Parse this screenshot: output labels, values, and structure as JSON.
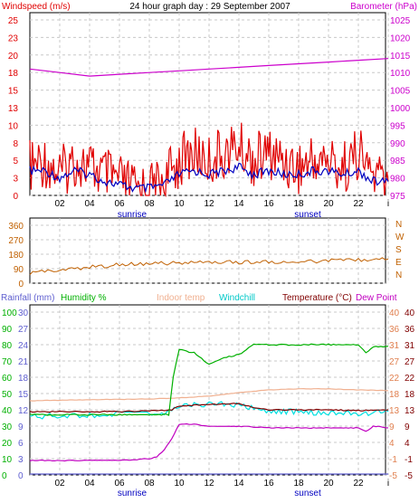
{
  "title": "24 hour graph day : 29 September 2007",
  "labels": {
    "sunrise": "sunrise",
    "sunset": "sunset"
  },
  "colors": {
    "windspeed": "#e00000",
    "windavg": "#0000c0",
    "barometer": "#cc00cc",
    "winddir": "#c06000",
    "rainfall": "#6060d0",
    "humidity": "#00b000",
    "indoor": "#f0b090",
    "windchill": "#00e0e0",
    "temperature": "#800000",
    "dewpoint": "#c000c0",
    "grid": "#c8c8c8",
    "frame": "#000000"
  },
  "chart_data": [
    {
      "type": "line",
      "panel": "wind-barometer",
      "x_ticks": [
        "02",
        "04",
        "06",
        "08",
        "10",
        "12",
        "14",
        "16",
        "18",
        "20",
        "22",
        "i"
      ],
      "left_axis": {
        "label": "Windspeed (m/s)",
        "ticks": [
          0,
          3,
          5,
          8,
          10,
          13,
          15,
          18,
          20,
          23,
          25
        ],
        "ylim": [
          0,
          25
        ]
      },
      "right_axis": {
        "label": "Barometer (hPa)",
        "ticks": [
          975,
          980,
          985,
          990,
          995,
          1000,
          1005,
          1010,
          1015,
          1020,
          1025
        ],
        "ylim": [
          975,
          1025
        ]
      },
      "series": [
        {
          "name": "Windspeed (m/s)",
          "color_key": "windspeed",
          "x": [
            0,
            1,
            2,
            3,
            4,
            5,
            6,
            7,
            8,
            9,
            10,
            11,
            12,
            13,
            14,
            15,
            16,
            17,
            18,
            19,
            20,
            21,
            22,
            23,
            24
          ],
          "values": [
            4,
            5,
            3,
            5,
            4,
            3,
            2,
            1,
            1,
            2,
            5,
            6,
            5,
            6,
            7,
            5,
            6,
            5,
            4,
            5,
            5,
            4,
            6,
            3,
            2
          ]
        },
        {
          "name": "wind average",
          "color_key": "windavg",
          "x": [
            0,
            1,
            2,
            3,
            4,
            5,
            6,
            7,
            8,
            9,
            10,
            11,
            12,
            13,
            14,
            15,
            16,
            17,
            18,
            19,
            20,
            21,
            22,
            23,
            24
          ],
          "values": [
            3.5,
            3.5,
            2.5,
            3.5,
            3,
            2,
            1.5,
            1,
            1,
            1.5,
            3,
            3.5,
            3,
            3.5,
            4,
            3,
            3.5,
            3,
            3,
            3.5,
            3.5,
            3,
            3.5,
            2,
            2
          ]
        },
        {
          "name": "Barometer (hPa)",
          "color_key": "barometer",
          "x": [
            0,
            2,
            4,
            6,
            8,
            10,
            12,
            14,
            16,
            18,
            20,
            22,
            24
          ],
          "values": [
            1011,
            1010,
            1009,
            1009.5,
            1010,
            1010.5,
            1011,
            1011.5,
            1012,
            1012.5,
            1013,
            1013.5,
            1014
          ]
        }
      ]
    },
    {
      "type": "line",
      "panel": "wind-direction",
      "left_axis": {
        "ticks": [
          0,
          90,
          180,
          270,
          360
        ],
        "ylim": [
          0,
          360
        ]
      },
      "right_axis": {
        "ticks": [
          "N",
          "W",
          "S",
          "E",
          "N"
        ]
      },
      "series": [
        {
          "name": "wind direction",
          "color_key": "winddir",
          "x": [
            0,
            2,
            4,
            6,
            8,
            10,
            12,
            14,
            16,
            18,
            20,
            22,
            24
          ],
          "values": [
            65,
            80,
            100,
            115,
            120,
            125,
            130,
            130,
            132,
            135,
            138,
            142,
            150
          ]
        }
      ]
    },
    {
      "type": "line",
      "panel": "temperature-humidity",
      "legend": [
        "Rainfall (mm)",
        "Humidity %",
        "Indoor temp",
        "Windchill",
        "Temperature (°C)",
        "Dew Point"
      ],
      "axes": {
        "rainfall": [
          0,
          3,
          6,
          9,
          12,
          15,
          18,
          21,
          24,
          27,
          30
        ],
        "humidity": [
          0,
          10,
          20,
          30,
          40,
          50,
          60,
          70,
          80,
          90,
          100
        ],
        "right_orange": [
          -5,
          -1,
          4,
          9,
          13,
          18,
          22,
          27,
          31,
          36,
          40
        ],
        "right_dark": [
          -5,
          -1,
          4,
          9,
          13,
          18,
          22,
          27,
          31,
          36,
          40
        ]
      },
      "series": [
        {
          "name": "Humidity %",
          "color_key": "humidity",
          "x": [
            0,
            2,
            4,
            6,
            8,
            9.3,
            9.6,
            10,
            11,
            12,
            13,
            14,
            15,
            16,
            18,
            20,
            21,
            22,
            22.5,
            23,
            24
          ],
          "values": [
            37,
            37,
            37,
            37,
            37,
            37,
            60,
            77,
            75,
            68,
            72,
            74,
            80,
            80,
            80,
            80,
            80,
            80,
            75,
            79,
            79
          ]
        },
        {
          "name": "Indoor temp",
          "color_key": "indoor",
          "x": [
            0,
            4,
            8,
            10,
            12,
            14,
            16,
            18,
            20,
            22,
            24
          ],
          "values": [
            15.5,
            15.8,
            16,
            16.3,
            16.8,
            17.8,
            18.5,
            18.8,
            18.8,
            18.5,
            18.3
          ]
        },
        {
          "name": "Windchill",
          "color_key": "windchill",
          "x": [
            0,
            2,
            4,
            6,
            8,
            9.5,
            10,
            12,
            14,
            16,
            18,
            20,
            22,
            24
          ],
          "values": [
            11,
            11.5,
            11.5,
            12,
            12,
            12.5,
            14,
            14.5,
            14.5,
            12.5,
            12.5,
            12,
            12,
            12.5
          ]
        },
        {
          "name": "Temperature (°C)",
          "color_key": "temperature",
          "x": [
            0,
            2,
            4,
            6,
            8,
            9.5,
            10,
            12,
            14,
            15,
            16,
            18,
            20,
            22,
            24
          ],
          "values": [
            12.5,
            12.5,
            12.5,
            12.5,
            12.7,
            13,
            14,
            14.5,
            14.8,
            13.5,
            13,
            13,
            13,
            12.8,
            13
          ]
        },
        {
          "name": "Dew Point",
          "color_key": "dewpoint",
          "x": [
            0,
            2,
            4,
            6,
            8,
            8.5,
            9,
            9.5,
            10,
            11,
            12,
            14,
            16,
            18,
            20,
            22,
            22.5,
            23,
            24
          ],
          "values": [
            -1,
            -1,
            -1,
            -1,
            -0.5,
            0,
            2,
            5,
            9,
            9,
            8.5,
            8.5,
            8,
            8,
            8,
            8,
            7,
            8.5,
            8
          ]
        },
        {
          "name": "Rainfall (mm)",
          "color_key": "rainfall",
          "x": [
            0,
            24
          ],
          "values": [
            0,
            0
          ]
        }
      ]
    }
  ]
}
